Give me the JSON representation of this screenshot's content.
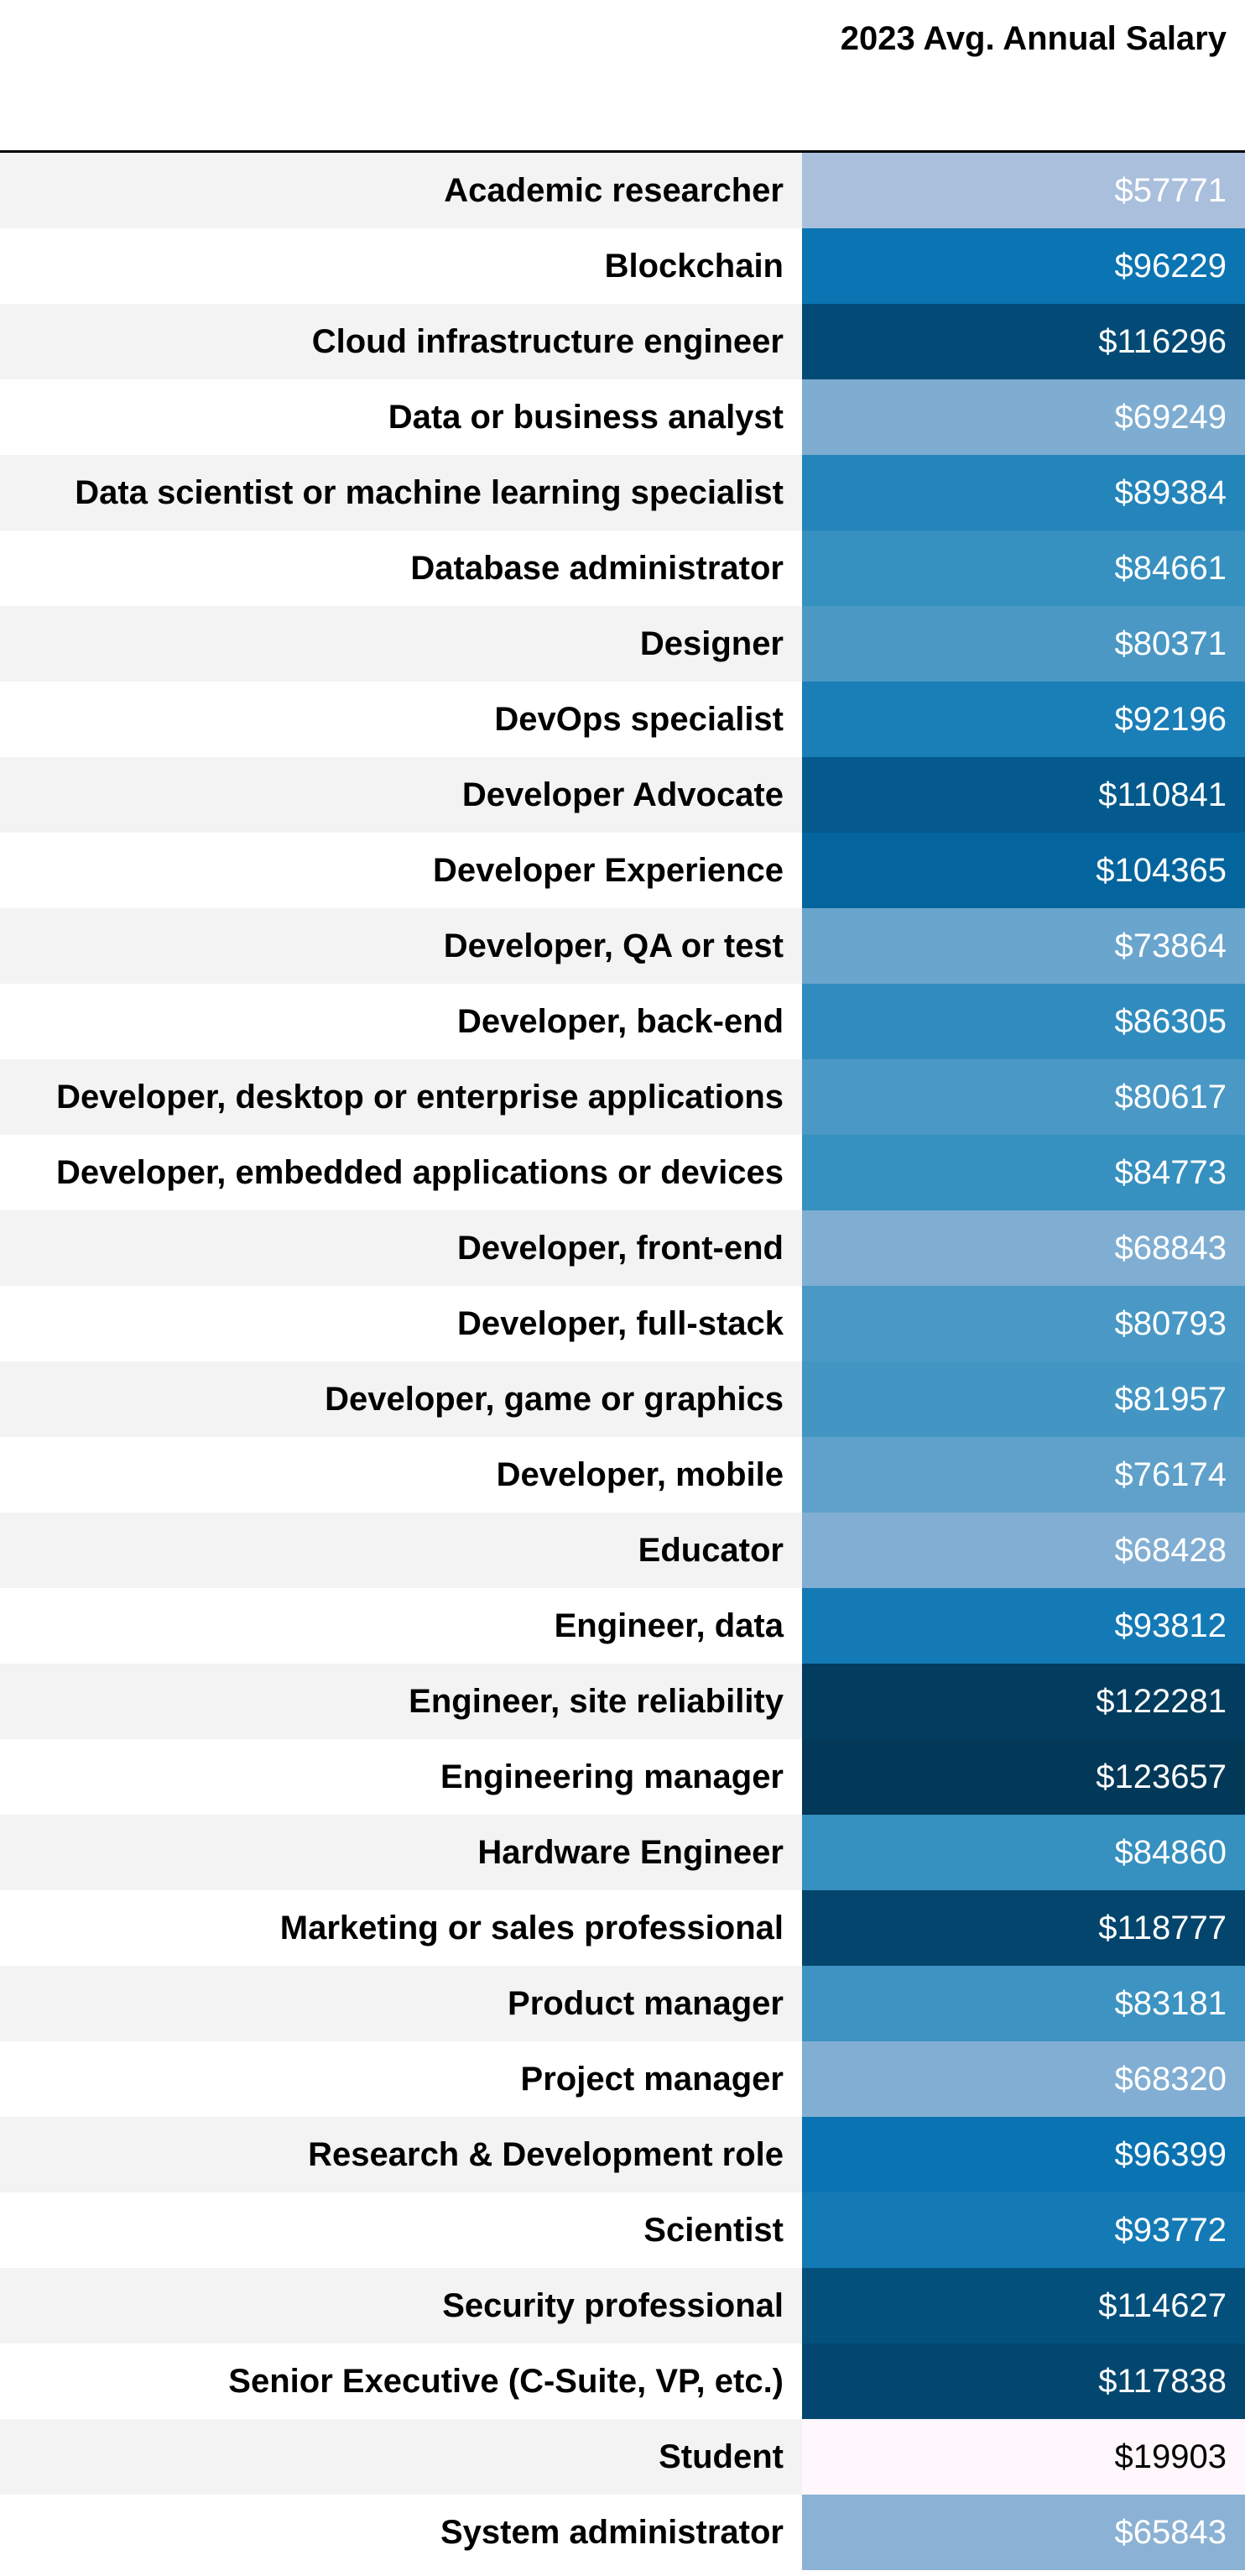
{
  "chart_data": {
    "type": "table",
    "header": "2023 Avg. Annual Salary",
    "rows": [
      {
        "label": "Academic researcher",
        "value": "$57771",
        "number": 57771
      },
      {
        "label": "Blockchain",
        "value": "$96229",
        "number": 96229
      },
      {
        "label": "Cloud infrastructure engineer",
        "value": "$116296",
        "number": 116296
      },
      {
        "label": "Data or business analyst",
        "value": "$69249",
        "number": 69249
      },
      {
        "label": "Data scientist or machine learning specialist",
        "value": "$89384",
        "number": 89384
      },
      {
        "label": "Database administrator",
        "value": "$84661",
        "number": 84661
      },
      {
        "label": "Designer",
        "value": "$80371",
        "number": 80371
      },
      {
        "label": "DevOps specialist",
        "value": "$92196",
        "number": 92196
      },
      {
        "label": "Developer Advocate",
        "value": "$110841",
        "number": 110841
      },
      {
        "label": "Developer Experience",
        "value": "$104365",
        "number": 104365
      },
      {
        "label": "Developer, QA or test",
        "value": "$73864",
        "number": 73864
      },
      {
        "label": "Developer, back-end",
        "value": "$86305",
        "number": 86305
      },
      {
        "label": "Developer, desktop or enterprise applications",
        "value": "$80617",
        "number": 80617
      },
      {
        "label": "Developer, embedded applications or devices",
        "value": "$84773",
        "number": 84773
      },
      {
        "label": "Developer, front-end",
        "value": "$68843",
        "number": 68843
      },
      {
        "label": "Developer, full-stack",
        "value": "$80793",
        "number": 80793
      },
      {
        "label": "Developer, game or graphics",
        "value": "$81957",
        "number": 81957
      },
      {
        "label": "Developer, mobile",
        "value": "$76174",
        "number": 76174
      },
      {
        "label": "Educator",
        "value": "$68428",
        "number": 68428
      },
      {
        "label": "Engineer, data",
        "value": "$93812",
        "number": 93812
      },
      {
        "label": "Engineer, site reliability",
        "value": "$122281",
        "number": 122281
      },
      {
        "label": "Engineering manager",
        "value": "$123657",
        "number": 123657
      },
      {
        "label": "Hardware Engineer",
        "value": "$84860",
        "number": 84860
      },
      {
        "label": "Marketing or sales professional",
        "value": "$118777",
        "number": 118777
      },
      {
        "label": "Product manager",
        "value": "$83181",
        "number": 83181
      },
      {
        "label": "Project manager",
        "value": "$68320",
        "number": 68320
      },
      {
        "label": "Research & Development role",
        "value": "$96399",
        "number": 96399
      },
      {
        "label": "Scientist",
        "value": "$93772",
        "number": 93772
      },
      {
        "label": "Security professional",
        "value": "$114627",
        "number": 114627
      },
      {
        "label": "Senior Executive (C-Suite, VP, etc.)",
        "value": "$117838",
        "number": 117838
      },
      {
        "label": "Student",
        "value": "$19903",
        "number": 19903
      },
      {
        "label": "System administrator",
        "value": "$65843",
        "number": 65843
      }
    ],
    "colors": {
      "row_alt": "#f3f3f3",
      "row_base": "#ffffff",
      "scale_low": "#fff7fb",
      "scale_mid": "#74a9cf",
      "scale_high": "#023858"
    }
  }
}
